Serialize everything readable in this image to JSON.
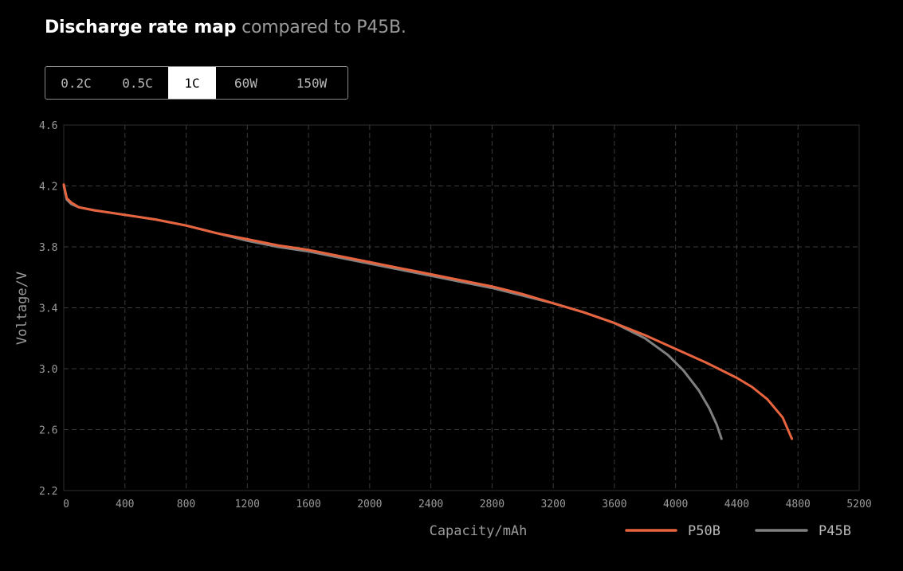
{
  "header": {
    "title_strong": "Discharge rate map",
    "title_soft": "compared to P45B."
  },
  "tabs": [
    {
      "label": "0.2C",
      "active": false
    },
    {
      "label": "0.5C",
      "active": false
    },
    {
      "label": "1C",
      "active": true
    },
    {
      "label": "60W",
      "active": false
    },
    {
      "label": "150W",
      "active": false
    }
  ],
  "chart_data": {
    "type": "line",
    "title": "",
    "xlabel": "Capacity/mAh",
    "ylabel": "Voltage/V",
    "xlim": [
      0,
      5200
    ],
    "ylim": [
      2.2,
      4.6
    ],
    "xticks": [
      "0",
      "400",
      "800",
      "1200",
      "1600",
      "2000",
      "2400",
      "2800",
      "3200",
      "3600",
      "4000",
      "4400",
      "4800",
      "5200"
    ],
    "yticks": [
      "4.6",
      "4.2",
      "3.8",
      "3.4",
      "3.0",
      "2.6",
      "2.2"
    ],
    "grid": true,
    "legend_position": "bottom-right",
    "series": [
      {
        "name": "P50B",
        "color": "#e8643f",
        "x": [
          0,
          20,
          50,
          100,
          200,
          400,
          600,
          800,
          1000,
          1200,
          1400,
          1600,
          1800,
          2000,
          2200,
          2400,
          2600,
          2800,
          3000,
          3200,
          3400,
          3600,
          3800,
          4000,
          4200,
          4400,
          4500,
          4600,
          4700,
          4760
        ],
        "y": [
          4.21,
          4.12,
          4.09,
          4.06,
          4.04,
          4.01,
          3.98,
          3.94,
          3.89,
          3.85,
          3.81,
          3.78,
          3.74,
          3.7,
          3.66,
          3.62,
          3.58,
          3.54,
          3.49,
          3.43,
          3.37,
          3.3,
          3.22,
          3.13,
          3.04,
          2.94,
          2.88,
          2.8,
          2.68,
          2.54
        ]
      },
      {
        "name": "P45B",
        "color": "#808080",
        "x": [
          0,
          20,
          50,
          100,
          200,
          400,
          600,
          800,
          1000,
          1200,
          1400,
          1600,
          1800,
          2000,
          2200,
          2400,
          2600,
          2800,
          3000,
          3200,
          3400,
          3600,
          3800,
          3950,
          4050,
          4150,
          4220,
          4270,
          4300
        ],
        "y": [
          4.2,
          4.11,
          4.08,
          4.06,
          4.04,
          4.01,
          3.98,
          3.94,
          3.89,
          3.84,
          3.8,
          3.77,
          3.73,
          3.69,
          3.65,
          3.61,
          3.57,
          3.53,
          3.48,
          3.43,
          3.37,
          3.3,
          3.2,
          3.09,
          2.99,
          2.86,
          2.74,
          2.63,
          2.54
        ]
      }
    ]
  }
}
